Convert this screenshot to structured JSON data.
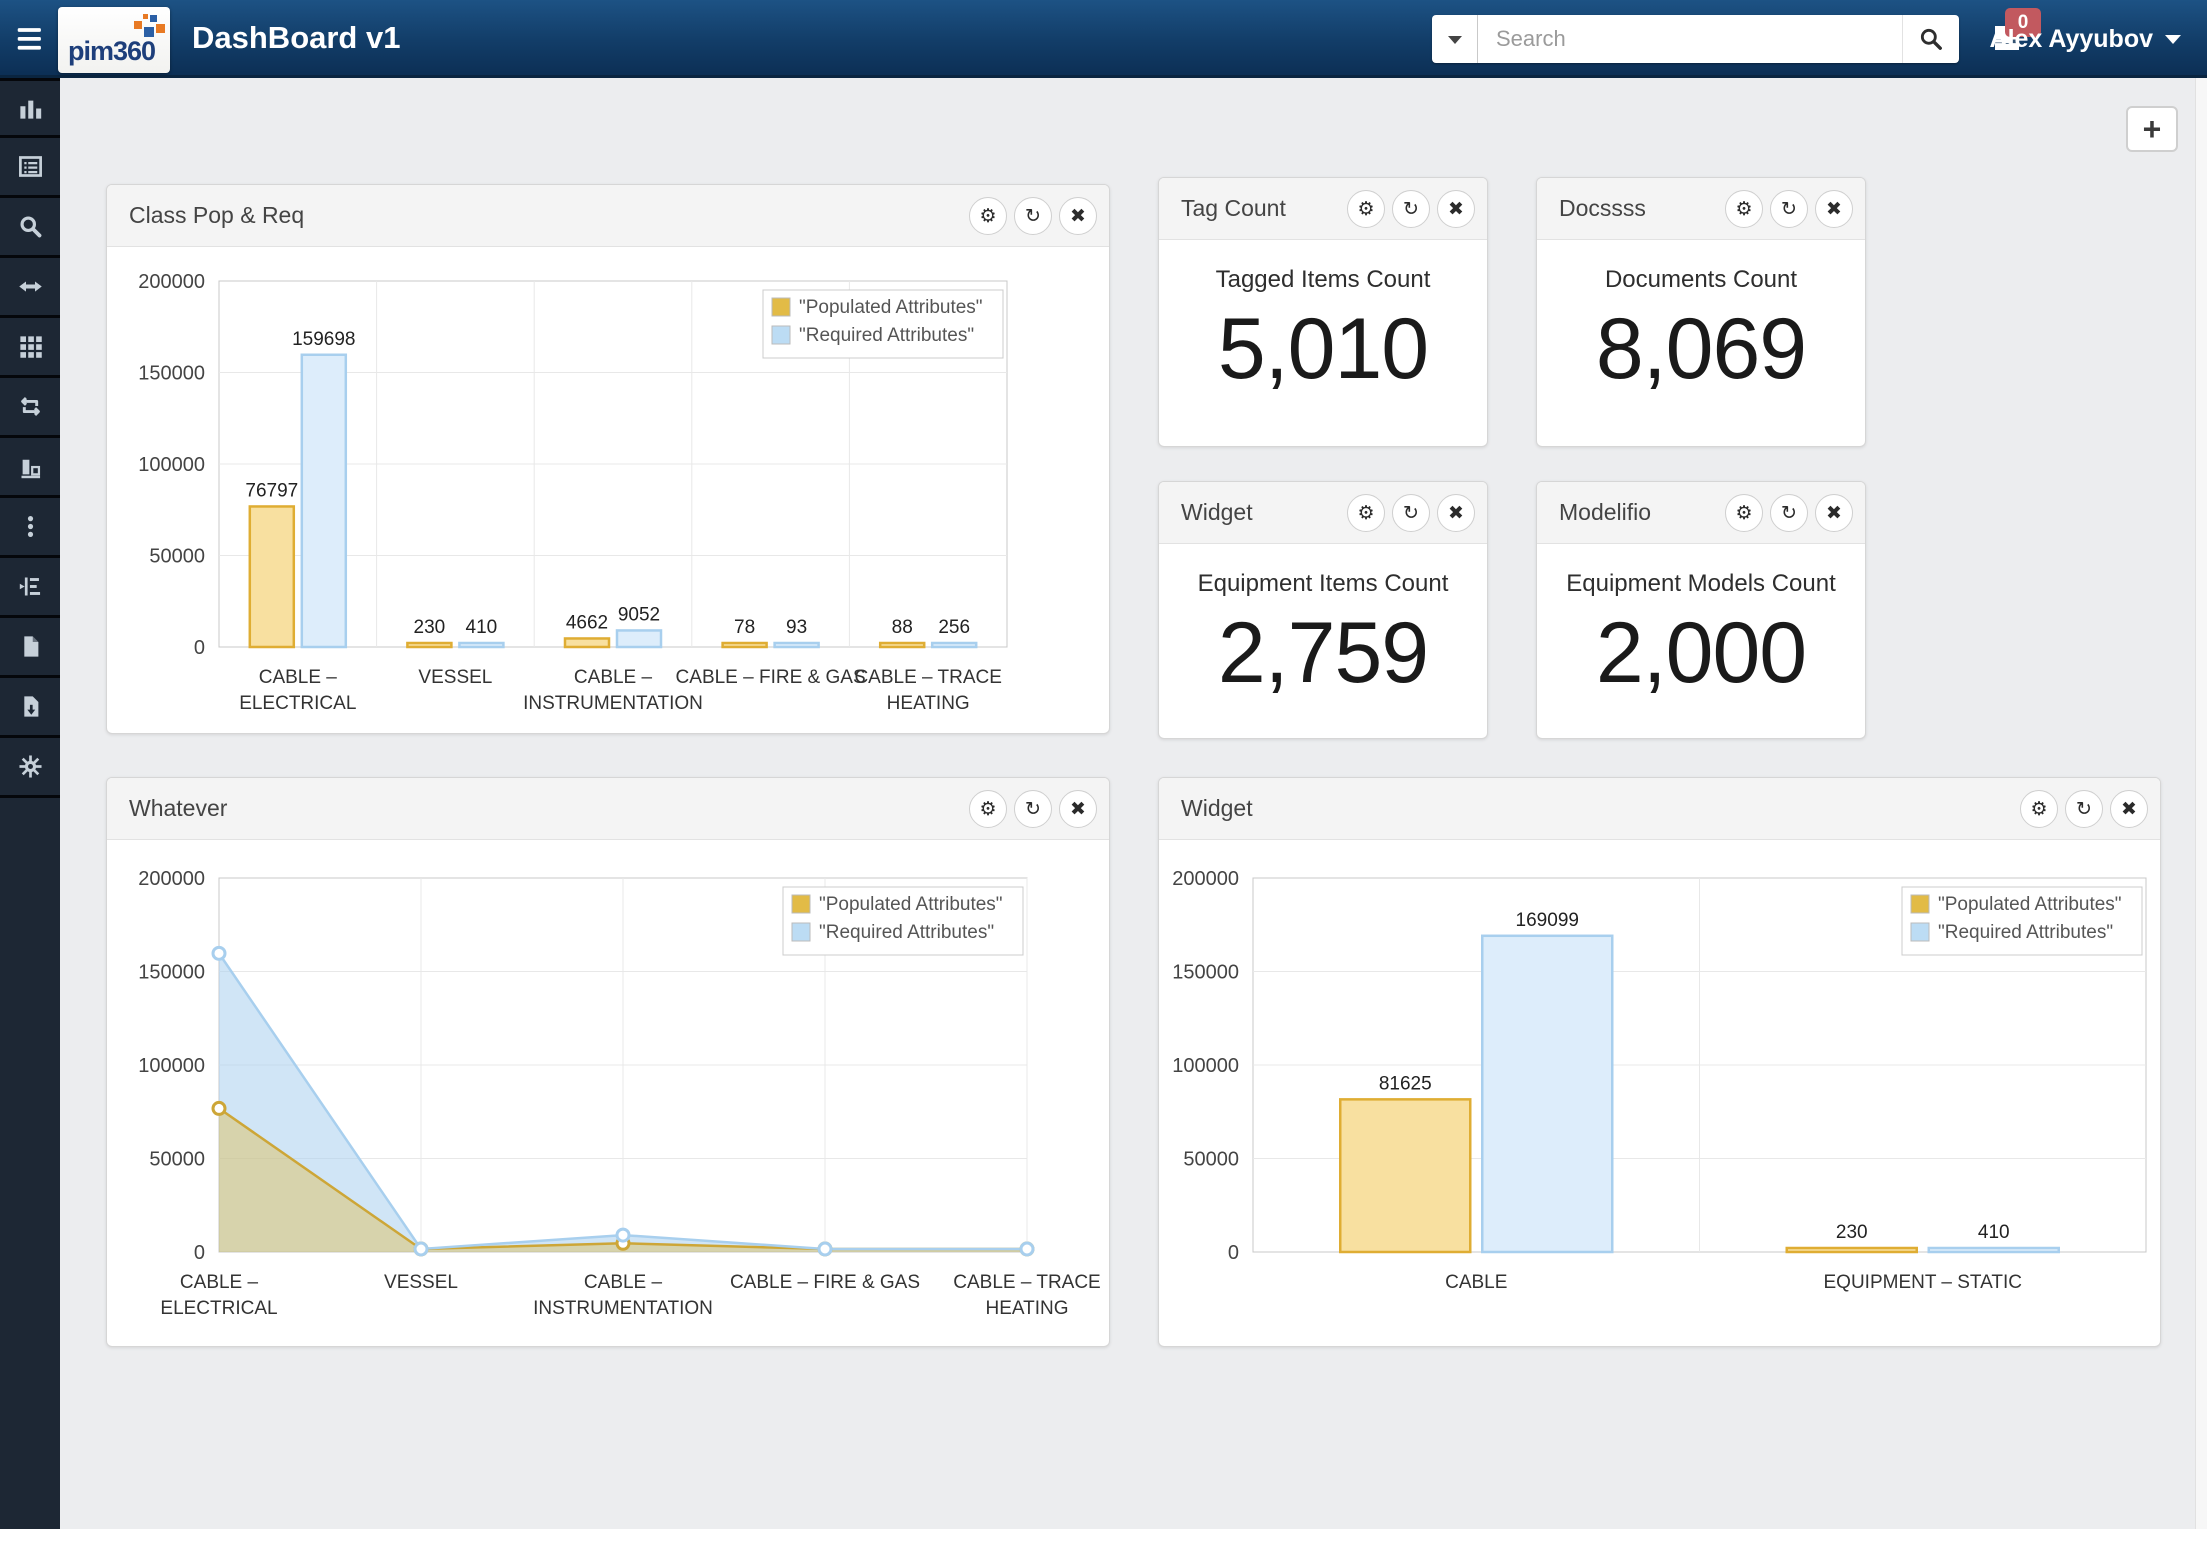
{
  "header": {
    "logo_text": "pim360",
    "title": "DashBoard v1",
    "search": {
      "placeholder": "Search"
    },
    "notification_count": "0",
    "user_name": "Alex Ayyubov"
  },
  "toolbar": {
    "add_widget_label": "+"
  },
  "icon_glyphs": {
    "gear": "⚙",
    "refresh": "↻",
    "close": "✖"
  },
  "sidebar": {
    "items": [
      {
        "icon": "bar-chart"
      },
      {
        "icon": "table-list"
      },
      {
        "icon": "search"
      },
      {
        "icon": "arrows-horizontal"
      },
      {
        "icon": "grid"
      },
      {
        "icon": "repeat"
      },
      {
        "icon": "chart-column"
      },
      {
        "icon": "ellipsis-vertical"
      },
      {
        "icon": "tree-indent"
      },
      {
        "icon": "file"
      },
      {
        "icon": "file-download"
      },
      {
        "icon": "gear"
      }
    ]
  },
  "colors": {
    "header_top": "#1d5284",
    "header_bottom": "#0c2f55",
    "sidebar_bg": "#1d2734",
    "badge_red": "#c2595f",
    "populated_stroke": "#dfad33",
    "populated_fill": "#f8e0a0",
    "required_stroke": "#a8cfee",
    "required_fill": "#ddedfb",
    "page_bg": "#ecedef"
  },
  "cards": [
    {
      "title": "Class Pop & Req",
      "type": "bar-chart",
      "actions": [
        "gear",
        "refresh",
        "close"
      ]
    },
    {
      "title": "Tag Count",
      "type": "stat",
      "label": "Tagged Items Count",
      "value": "5,010",
      "actions": [
        "gear",
        "refresh",
        "close"
      ]
    },
    {
      "title": "Docssss",
      "type": "stat",
      "label": "Documents Count",
      "value": "8,069",
      "actions": [
        "gear",
        "refresh",
        "close"
      ]
    },
    {
      "title": "Widget",
      "type": "stat",
      "label": "Equipment Items Count",
      "value": "2,759",
      "actions": [
        "gear",
        "refresh",
        "close"
      ]
    },
    {
      "title": "Modelifio",
      "type": "stat",
      "label": "Equipment Models Count",
      "value": "2,000",
      "actions": [
        "gear",
        "refresh",
        "close"
      ]
    },
    {
      "title": "Whatever",
      "type": "area-chart",
      "actions": [
        "gear",
        "refresh",
        "close"
      ]
    },
    {
      "title": "Widget",
      "type": "bar-chart",
      "actions": [
        "gear",
        "refresh",
        "close"
      ]
    }
  ],
  "chart_data": [
    {
      "type": "bar",
      "title": "Class Pop & Req",
      "categories": [
        "CABLE –\nELECTRICAL",
        "VESSEL",
        "CABLE –\nINSTRUMENTATION",
        "CABLE – FIRE & GAS",
        "CABLE – TRACE\nHEATING"
      ],
      "series": [
        {
          "name": "\"Populated Attributes\"",
          "values": [
            76797,
            230,
            4662,
            78,
            88
          ],
          "color": "#dfad33",
          "fill": "#f8e0a0",
          "legend": "#e2bb46"
        },
        {
          "name": "\"Required Attributes\"",
          "values": [
            159698,
            410,
            9052,
            93,
            256
          ],
          "color": "#a8cfee",
          "fill": "#ddedfb",
          "legend": "#bcdcf4"
        }
      ],
      "ylim": [
        0,
        200000
      ],
      "yticks": [
        0,
        50000,
        100000,
        150000,
        200000
      ],
      "grid": true,
      "legend_position": "top-right"
    },
    {
      "type": "area",
      "title": "Whatever",
      "categories": [
        "CABLE –\nELECTRICAL",
        "VESSEL",
        "CABLE –\nINSTRUMENTATION",
        "CABLE – FIRE & GAS",
        "CABLE – TRACE\nHEATING"
      ],
      "series": [
        {
          "name": "\"Populated Attributes\"",
          "values": [
            76797,
            230,
            4662,
            78,
            88
          ],
          "color": "#cda637",
          "fill": "rgba(224,186,69,0.42)",
          "legend": "#e2bb46"
        },
        {
          "name": "\"Required Attributes\"",
          "values": [
            159698,
            410,
            9052,
            93,
            256
          ],
          "color": "#a8cfee",
          "fill": "rgba(169,207,238,0.55)",
          "legend": "#bcdcf4"
        }
      ],
      "ylim": [
        0,
        200000
      ],
      "yticks": [
        0,
        50000,
        100000,
        150000,
        200000
      ],
      "grid": true,
      "legend_position": "top-right"
    },
    {
      "type": "bar",
      "title": "Widget",
      "categories": [
        "CABLE",
        "EQUIPMENT – STATIC"
      ],
      "series": [
        {
          "name": "\"Populated Attributes\"",
          "values": [
            81625,
            230
          ],
          "color": "#dfad33",
          "fill": "#f8e0a0",
          "legend": "#e2bb46"
        },
        {
          "name": "\"Required Attributes\"",
          "values": [
            169099,
            410
          ],
          "color": "#a8cfee",
          "fill": "#ddedfb",
          "legend": "#bcdcf4"
        }
      ],
      "ylim": [
        0,
        200000
      ],
      "yticks": [
        0,
        50000,
        100000,
        150000,
        200000
      ],
      "grid": true,
      "legend_position": "top-right"
    }
  ]
}
